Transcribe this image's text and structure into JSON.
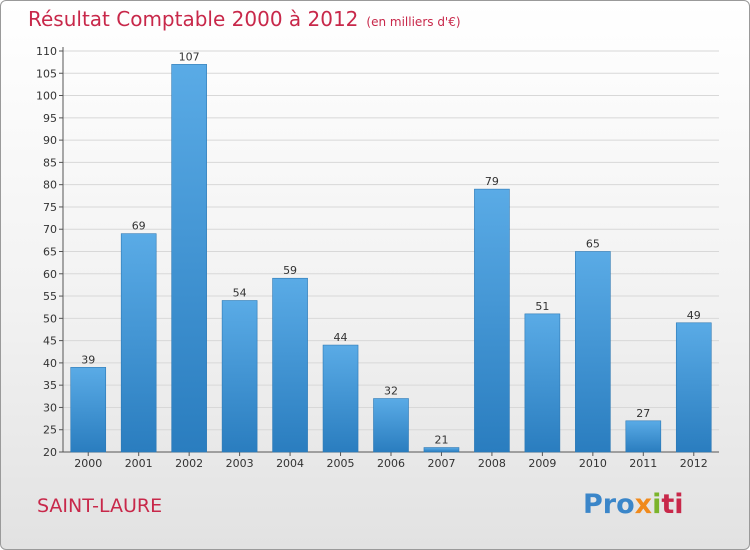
{
  "chart_data": {
    "type": "bar",
    "title": "Résultat Comptable 2000 à 2012",
    "subtitle": "(en milliers d'€)",
    "categories": [
      "2000",
      "2001",
      "2002",
      "2003",
      "2004",
      "2005",
      "2006",
      "2007",
      "2008",
      "2009",
      "2010",
      "2011",
      "2012"
    ],
    "values": [
      39,
      69,
      107,
      54,
      59,
      44,
      32,
      21,
      79,
      51,
      65,
      27,
      49
    ],
    "ylim": [
      20,
      110
    ],
    "yticks": [
      20,
      25,
      30,
      35,
      40,
      45,
      50,
      55,
      60,
      65,
      70,
      75,
      80,
      85,
      90,
      95,
      100,
      105,
      110
    ],
    "grid": true,
    "xlabel": "",
    "ylabel": "",
    "colors": {
      "bar_light": "#5aabe6",
      "bar_dark": "#2a7dbf",
      "title": "#c8284a"
    }
  },
  "commune": "SAINT-LAURE",
  "brand": {
    "p1": "Pro",
    "p2": "x",
    "p3": "i",
    "p4": "ti"
  }
}
